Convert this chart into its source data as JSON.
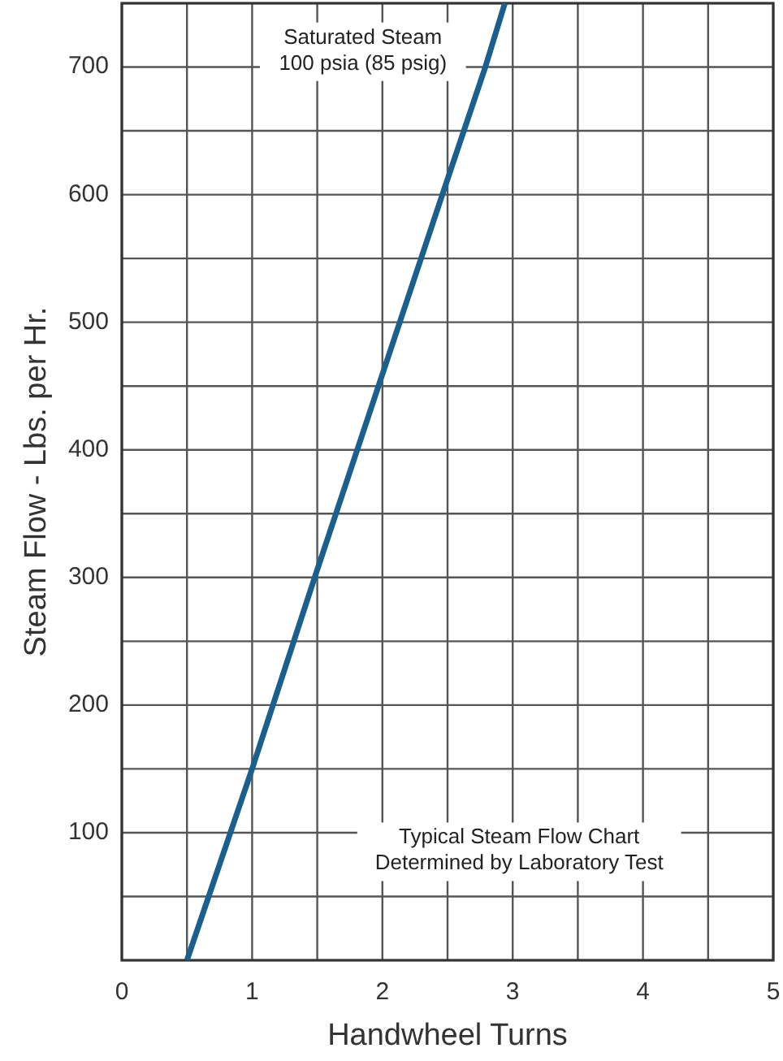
{
  "chart_data": {
    "type": "line",
    "xlabel": "Handwheel Turns",
    "ylabel": "Steam Flow - Lbs. per Hr.",
    "x": [
      0.5,
      1.0,
      1.48,
      1.97,
      2.46,
      2.79,
      2.94
    ],
    "series": [
      {
        "color": "#1b5f8e",
        "values": [
          0,
          150,
          300,
          450,
          600,
          700,
          750
        ]
      }
    ],
    "xlim": [
      0,
      5
    ],
    "ylim": [
      0,
      750
    ],
    "xticks": [
      0,
      {
        "value": 0.5,
        "label": null
      },
      1,
      {
        "value": 1.5,
        "label": null
      },
      2,
      {
        "value": 2.5,
        "label": null
      },
      3,
      {
        "value": 3.5,
        "label": null
      },
      4,
      {
        "value": 4.5,
        "label": null
      },
      5
    ],
    "yticks": [
      {
        "value": 50,
        "label": null
      },
      100,
      {
        "value": 150,
        "label": null
      },
      200,
      {
        "value": 250,
        "label": null
      },
      300,
      {
        "value": 350,
        "label": null
      },
      400,
      {
        "value": 450,
        "label": null
      },
      500,
      {
        "value": 550,
        "label": null
      },
      600,
      {
        "value": 650,
        "label": null
      },
      700
    ],
    "grid": true,
    "marker": "none",
    "line_style": "solid",
    "annotations": [
      "Saturated Steam\n100 psia (85 psig)",
      "Typical Steam Flow Chart\nDetermined by Laboratory Test"
    ]
  }
}
